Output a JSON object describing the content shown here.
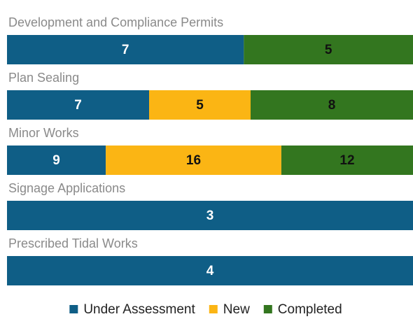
{
  "chart_data": {
    "type": "bar",
    "orientation": "horizontal",
    "stacked": "percent",
    "categories": [
      "Development and Compliance Permits",
      "Plan Sealing",
      "Minor Works",
      "Signage Applications",
      "Prescribed Tidal Works"
    ],
    "series": [
      {
        "name": "Under Assessment",
        "color": "#0f5e86",
        "label_color": "#ffffff",
        "values": [
          7,
          7,
          9,
          3,
          4
        ]
      },
      {
        "name": "New",
        "color": "#fbb514",
        "label_color": "#111111",
        "values": [
          null,
          5,
          16,
          null,
          null
        ]
      },
      {
        "name": "Completed",
        "color": "#33761f",
        "label_color": "#111111",
        "values": [
          5,
          8,
          12,
          null,
          null
        ]
      }
    ],
    "legend": "bottom"
  }
}
